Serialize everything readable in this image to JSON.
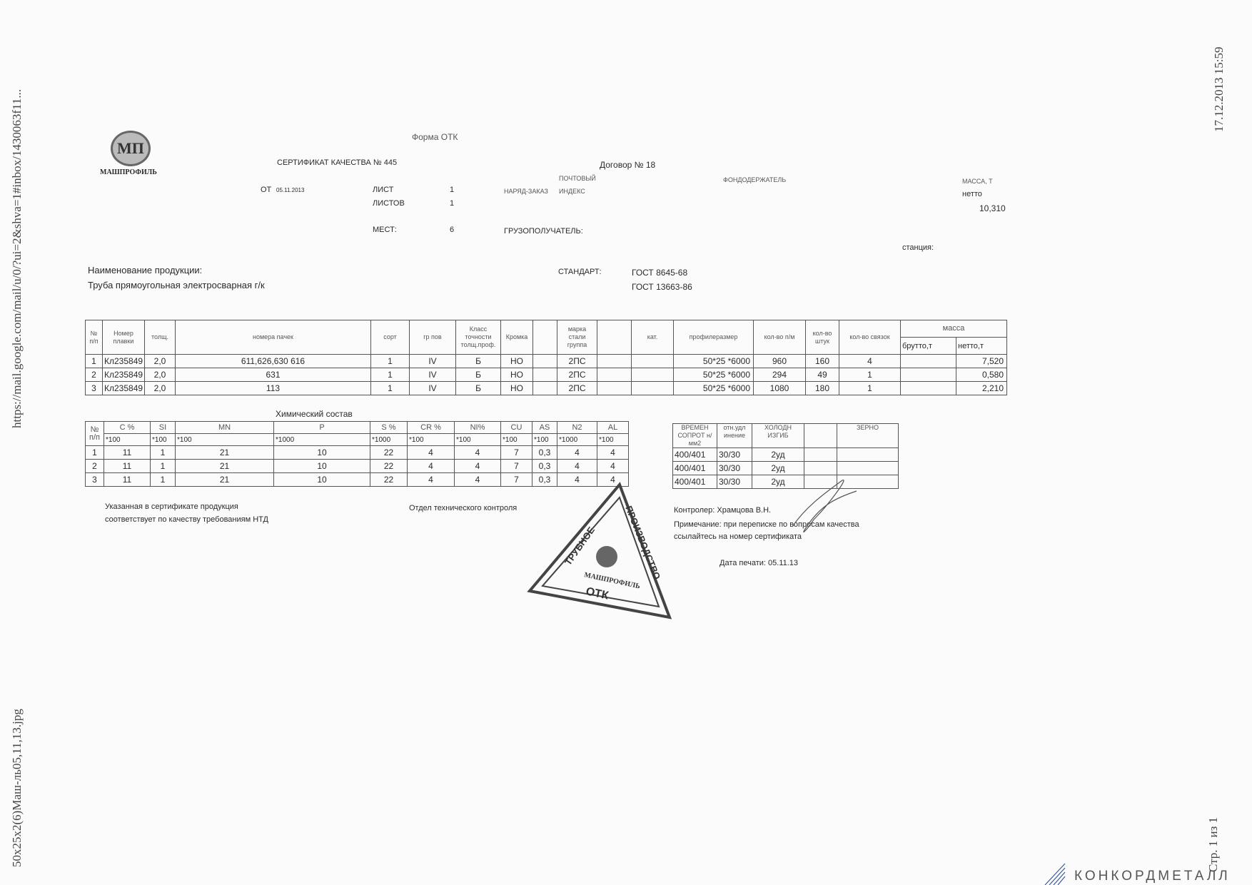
{
  "side": {
    "url": "https://mail.google.com/mail/u/0/?ui=2&shva=1#inbox/1430063f11...",
    "filename": "50x25x2(6)Маш-ль05,11,13.jpg",
    "datetime": "17.12.2013 15:59",
    "page": "Стр. 1 из 1"
  },
  "logo": {
    "brand": "МАШПРОФИЛЬ",
    "mark": "МП"
  },
  "header": {
    "form": "Форма ОТК",
    "certificate": "СЕРТИФИКАТ КАЧЕСТВА № 445",
    "contract": "Договор № 18",
    "from_label": "ОТ",
    "from_date": "05.11.2013",
    "sheet_label": "ЛИСТ",
    "sheet": "1",
    "sheets_label": "ЛИСТОВ",
    "sheets": "1",
    "places_label": "МЕСТ:",
    "places": "6",
    "order_label": "НАРЯД-ЗАКАЗ",
    "postal_top": "ПОЧТОВЫЙ",
    "postal_bottom": "ИНДЕКС",
    "fund_holder": "ФОНДОДЕРЖАТЕЛЬ",
    "mass_label": "МАССА, Т",
    "net_label": "нетто",
    "net_value": "10,310",
    "consignee": "ГРУЗОПОЛУЧАТЕЛЬ:",
    "station": "станция:"
  },
  "product": {
    "label": "Наименование продукции:",
    "name": "Труба прямоугольная электросварная г/к",
    "standard_label": "СТАНДАРТ:",
    "standards": [
      "ГОСТ 8645-68",
      "ГОСТ 13663-86"
    ]
  },
  "main_table": {
    "headers": [
      "№ п/п",
      "Номер плавки",
      "толщ.",
      "номера пачек",
      "сорт",
      "гр пов",
      "Класс точности толщ.проф.",
      "Кромка",
      "",
      "марка стали группа",
      "",
      "кат.",
      "профилеразмер",
      "кол-во п/м",
      "кол-во штук",
      "кол-во связок",
      "масса",
      "брутто,т",
      "нетто,т"
    ],
    "rows": [
      [
        "1",
        "Кл235849",
        "2,0",
        "611,626,630   616",
        "1",
        "IV",
        "Б",
        "НО",
        "",
        "2ПС",
        "",
        "",
        "50*25   *6000",
        "960",
        "160",
        "4",
        "",
        "7,520"
      ],
      [
        "2",
        "Кл235849",
        "2,0",
        "631",
        "1",
        "IV",
        "Б",
        "НО",
        "",
        "2ПС",
        "",
        "",
        "50*25   *6000",
        "294",
        "49",
        "1",
        "",
        "0,580"
      ],
      [
        "3",
        "Кл235849",
        "2,0",
        "113",
        "1",
        "IV",
        "Б",
        "НО",
        "",
        "2ПС",
        "",
        "",
        "50*25   *6000",
        "1080",
        "180",
        "1",
        "",
        "2,210"
      ]
    ]
  },
  "chem": {
    "title": "Химический состав",
    "headers": [
      "№ п/п",
      "C %",
      "SI",
      "MN",
      "P",
      "S %",
      "CR %",
      "NI%",
      "CU",
      "AS",
      "N2",
      "AL"
    ],
    "multipliers": [
      "*100",
      "*100",
      "*100",
      "*1000",
      "*1000",
      "*100",
      "*100",
      "*100",
      "*100",
      "*1000",
      "*100"
    ],
    "rows": [
      [
        "1",
        "11",
        "1",
        "21",
        "10",
        "22",
        "4",
        "4",
        "7",
        "0,3",
        "4",
        "4"
      ],
      [
        "2",
        "11",
        "1",
        "21",
        "10",
        "22",
        "4",
        "4",
        "7",
        "0,3",
        "4",
        "4"
      ],
      [
        "3",
        "11",
        "1",
        "21",
        "10",
        "22",
        "4",
        "4",
        "7",
        "0,3",
        "4",
        "4"
      ]
    ]
  },
  "mech": {
    "headers": [
      "ВРЕМЕН СОПРОТ н/мм2",
      "отн.удл инение",
      "ХОЛОДН ИЗГИБ",
      "",
      "ЗЕРНО"
    ],
    "rows": [
      [
        "400/401",
        "30/30",
        "2уд",
        "",
        ""
      ],
      [
        "400/401",
        "30/30",
        "2уд",
        "",
        ""
      ],
      [
        "400/401",
        "30/30",
        "2уд",
        "",
        ""
      ]
    ]
  },
  "footer": {
    "conformity_1": "Указанная в сертификате продукция",
    "conformity_2": "соответствует по качеству требованиям НТД",
    "dept": "Отдел технического контроля",
    "controller": "Контролер: Храмцова В.Н.",
    "note_1": "Примечание: при переписке по вопросам качества",
    "note_2": "ссылайтесь на номер сертификата",
    "print_date": "Дата печати: 05.11.13"
  },
  "stamp": {
    "left": "ТРУБНОЕ",
    "right": "ПРОИЗВОДСТВО",
    "brand": "МАШПРОФИЛЬ",
    "bottom": "ОТК"
  },
  "watermark": "КОНКОРДМЕТАЛЛ"
}
